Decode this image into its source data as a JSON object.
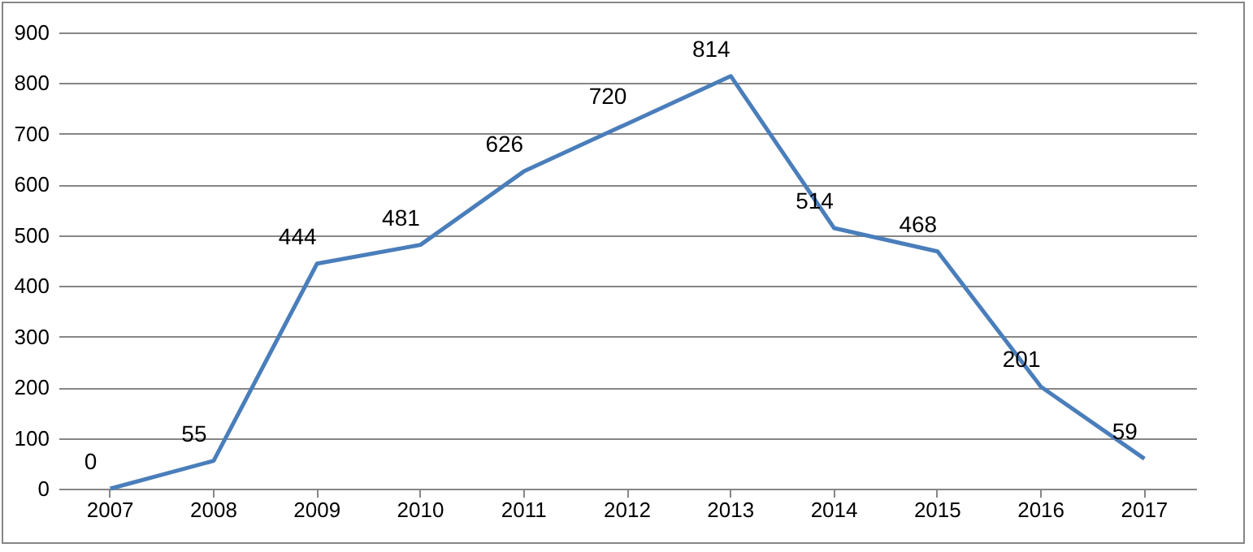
{
  "chart_data": {
    "type": "line",
    "categories": [
      "2007",
      "2008",
      "2009",
      "2010",
      "2011",
      "2012",
      "2013",
      "2014",
      "2015",
      "2016",
      "2017"
    ],
    "series": [
      {
        "color": "#4a7ebb",
        "values": [
          0,
          55,
          444,
          481,
          626,
          720,
          814,
          514,
          468,
          201,
          59
        ]
      }
    ],
    "ylim": [
      0,
      900
    ],
    "yticks": [
      0,
      100,
      200,
      300,
      400,
      500,
      600,
      700,
      800,
      900
    ],
    "grid": "y",
    "data_labels": true,
    "marker": "none",
    "line_style": "solid"
  }
}
